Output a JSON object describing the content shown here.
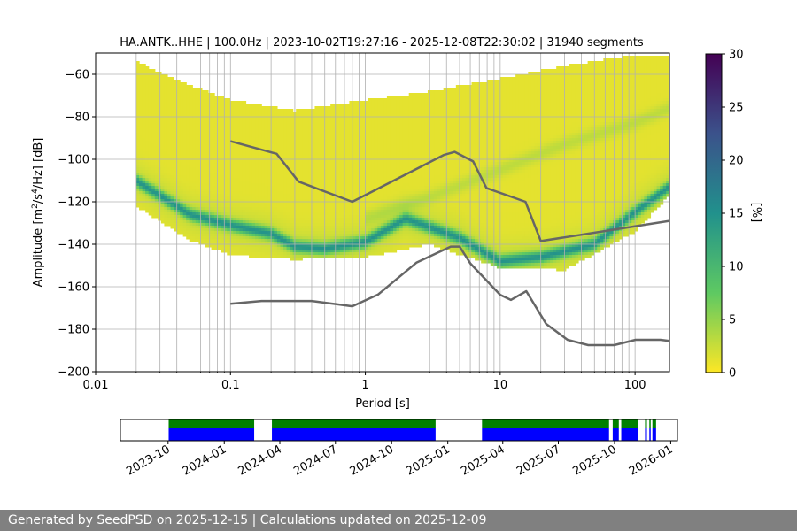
{
  "chart_data": {
    "type": "heatmap",
    "title": "HA.ANTK..HHE | 100.0Hz | 2023-10-02T19:27:16 - 2025-12-08T22:30:02 | 31940 segments",
    "xlabel": "Period [s]",
    "ylabel_pre": "Amplitude [m",
    "ylabel_sup1": "2",
    "ylabel_mid": "/s",
    "ylabel_sup2": "4",
    "ylabel_post": "/Hz] [dB]",
    "xscale": "log",
    "xlim": [
      0.01,
      180
    ],
    "ylim": [
      -200,
      -50
    ],
    "x_ticks": [
      {
        "value": 0.01,
        "label": "0.01"
      },
      {
        "value": 0.1,
        "label": "0.1"
      },
      {
        "value": 1,
        "label": "1"
      },
      {
        "value": 10,
        "label": "10"
      },
      {
        "value": 100,
        "label": "100"
      }
    ],
    "y_ticks": [
      {
        "value": -60,
        "label": "−60"
      },
      {
        "value": -80,
        "label": "−80"
      },
      {
        "value": -100,
        "label": "−100"
      },
      {
        "value": -120,
        "label": "−120"
      },
      {
        "value": -140,
        "label": "−140"
      },
      {
        "value": -160,
        "label": "−160"
      },
      {
        "value": -180,
        "label": "−180"
      },
      {
        "value": -200,
        "label": "−200"
      }
    ],
    "grid": true,
    "colorbar": {
      "label": "[%]",
      "range": [
        0,
        30
      ],
      "ticks": [
        {
          "value": 0,
          "label": "0"
        },
        {
          "value": 5,
          "label": "5"
        },
        {
          "value": 10,
          "label": "10"
        },
        {
          "value": 15,
          "label": "15"
        },
        {
          "value": 20,
          "label": "20"
        },
        {
          "value": 25,
          "label": "25"
        },
        {
          "value": 30,
          "label": "30"
        }
      ],
      "colormap": [
        "#fde725",
        "#5ec962",
        "#21918c",
        "#3b528b",
        "#440154"
      ]
    },
    "density": {
      "period_start": 0.02,
      "envelope": {
        "period": [
          0.02,
          0.05,
          0.1,
          0.3,
          1,
          3,
          10,
          30,
          100,
          180
        ],
        "upper_db": [
          -54,
          -65,
          -72,
          -77,
          -72,
          -68,
          -62,
          -56,
          -51,
          -51
        ],
        "lower_db": [
          -122,
          -138,
          -145,
          -147,
          -146,
          -140,
          -151,
          -152,
          -134,
          -117
        ]
      },
      "mode": {
        "period": [
          0.02,
          0.05,
          0.1,
          0.2,
          0.3,
          0.5,
          1,
          2,
          5,
          10,
          20,
          50,
          100,
          180
        ],
        "db": [
          -110,
          -126,
          -131,
          -135,
          -141,
          -142,
          -139,
          -128,
          -137,
          -148,
          -146,
          -140,
          -125,
          -113
        ]
      },
      "secondary_mode": {
        "period": [
          1,
          3,
          10,
          30,
          100,
          180
        ],
        "db": [
          -128,
          -118,
          -105,
          -93,
          -83,
          -76
        ]
      }
    },
    "nhnm": {
      "name": "NHNM",
      "period": [
        0.1,
        0.22,
        0.32,
        0.8,
        3.8,
        4.6,
        6.3,
        7.9,
        15.4,
        20,
        180
      ],
      "db": [
        -91.5,
        -97.4,
        -110.5,
        -120,
        -98,
        -96.5,
        -101,
        -113.5,
        -120,
        -138.5,
        -129
      ]
    },
    "nlnm": {
      "name": "NLNM",
      "period": [
        0.1,
        0.17,
        0.4,
        0.8,
        1.24,
        2.4,
        4.3,
        5,
        6,
        10,
        12,
        15.6,
        21.9,
        31.6,
        45,
        70,
        101,
        154,
        180
      ],
      "db": [
        -168,
        -166.7,
        -166.7,
        -169.2,
        -163.7,
        -148.6,
        -141.1,
        -141.1,
        -149,
        -163.8,
        -166.2,
        -162.1,
        -177.5,
        -185,
        -187.5,
        -187.5,
        -185,
        -185,
        -185.5
      ]
    },
    "availability": {
      "x_ticks": [
        {
          "date": "2023-10-01",
          "label": "2023-10"
        },
        {
          "date": "2024-01-01",
          "label": "2024-01"
        },
        {
          "date": "2024-04-01",
          "label": "2024-04"
        },
        {
          "date": "2024-07-01",
          "label": "2024-07"
        },
        {
          "date": "2024-10-01",
          "label": "2024-10"
        },
        {
          "date": "2025-01-01",
          "label": "2025-01"
        },
        {
          "date": "2025-04-01",
          "label": "2025-04"
        },
        {
          "date": "2025-07-01",
          "label": "2025-07"
        },
        {
          "date": "2025-10-01",
          "label": "2025-10"
        },
        {
          "date": "2026-01-01",
          "label": "2026-01"
        }
      ],
      "range": [
        "2023-07-15",
        "2026-01-12"
      ],
      "data_segments": [
        {
          "start": "2023-10-02",
          "end": "2024-02-19"
        },
        {
          "start": "2024-03-19",
          "end": "2024-12-12"
        },
        {
          "start": "2025-02-26",
          "end": "2025-09-22"
        },
        {
          "start": "2025-09-28",
          "end": "2025-10-08"
        },
        {
          "start": "2025-10-12",
          "end": "2025-11-09"
        },
        {
          "start": "2025-11-20",
          "end": "2025-11-23"
        },
        {
          "start": "2025-11-27",
          "end": "2025-11-29"
        },
        {
          "start": "2025-12-02",
          "end": "2025-12-08"
        }
      ],
      "colors": {
        "used": "#0000ff",
        "available": "#008000"
      }
    }
  },
  "footer": {
    "text": "Generated by SeedPSD on 2025-12-15 | Calculations updated on 2025-12-09"
  }
}
